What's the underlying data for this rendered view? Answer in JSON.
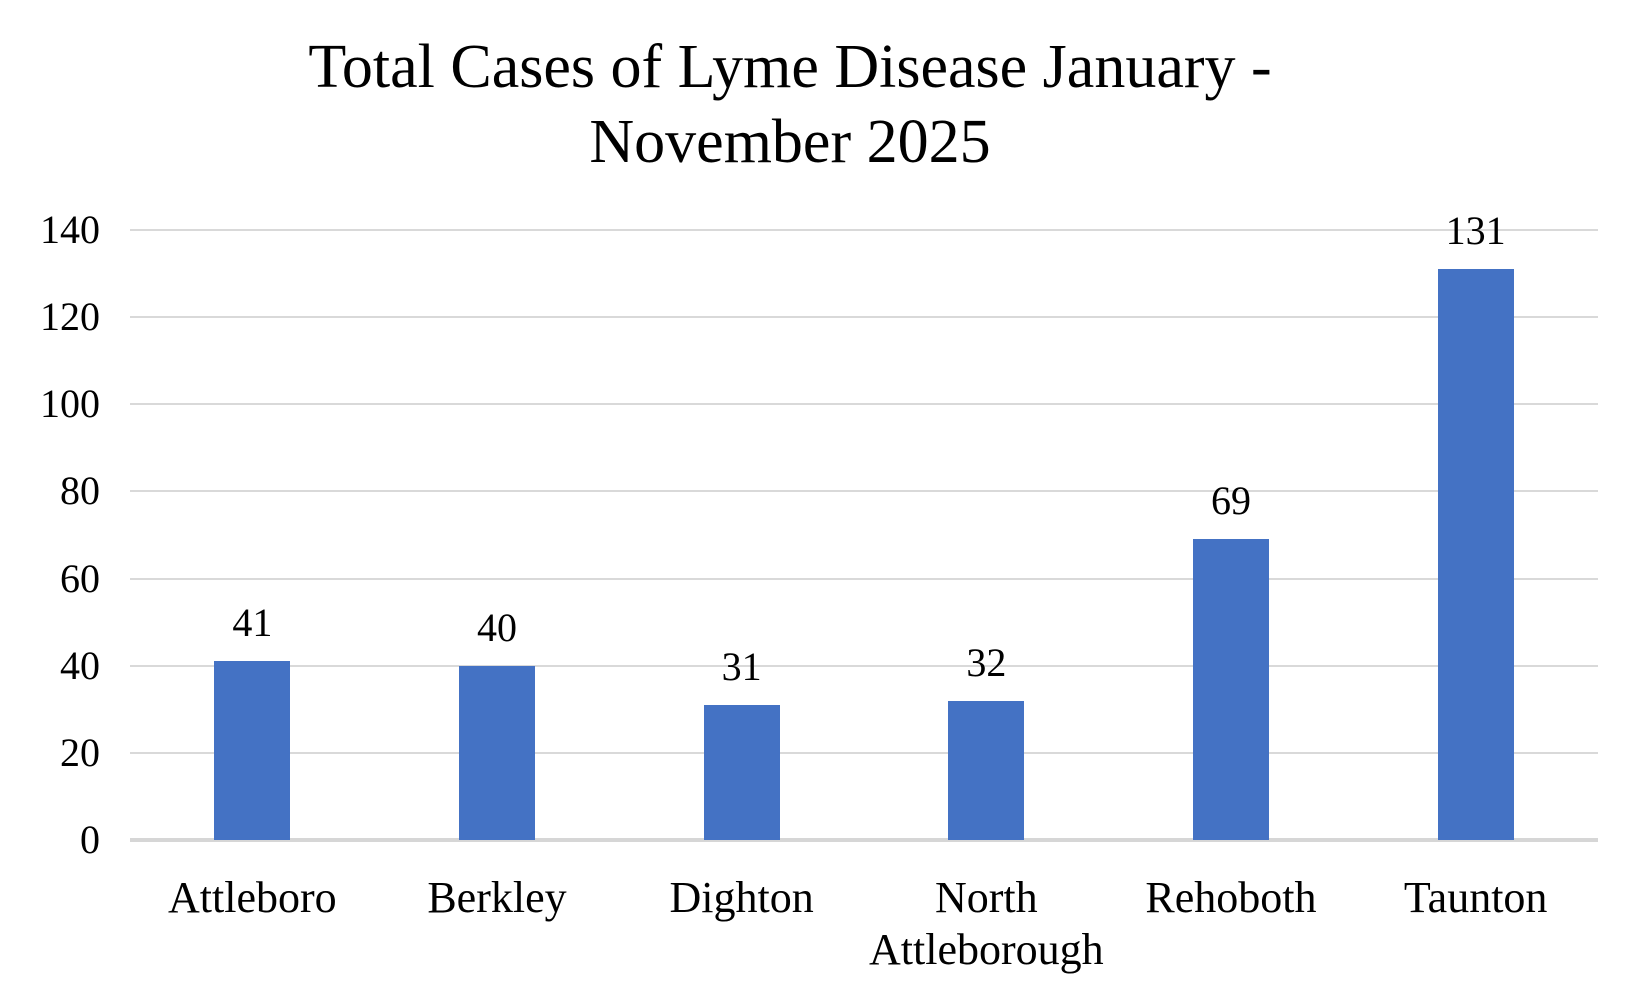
{
  "chart_data": {
    "type": "bar",
    "title": "Total Cases of Lyme Disease January - November 2025",
    "title_lines": [
      "Total Cases of Lyme Disease January -",
      "November 2025"
    ],
    "categories": [
      "Attleboro",
      "Berkley",
      "Dighton",
      "North Attleborough",
      "Rehoboth",
      "Taunton"
    ],
    "values": [
      41,
      40,
      31,
      32,
      69,
      131
    ],
    "data_labels": [
      "41",
      "40",
      "31",
      "32",
      "69",
      "131"
    ],
    "xlabel": "",
    "ylabel": "",
    "ylim": [
      0,
      140
    ],
    "yticks": [
      0,
      20,
      40,
      60,
      80,
      100,
      120,
      140
    ],
    "grid": "horizontal-only",
    "legend": "none",
    "colors": {
      "bar": "#4472C4",
      "gridline": "#D9D9D9",
      "axis_line": "#D6D6D6",
      "text": "#000000",
      "background": "#ffffff"
    }
  }
}
